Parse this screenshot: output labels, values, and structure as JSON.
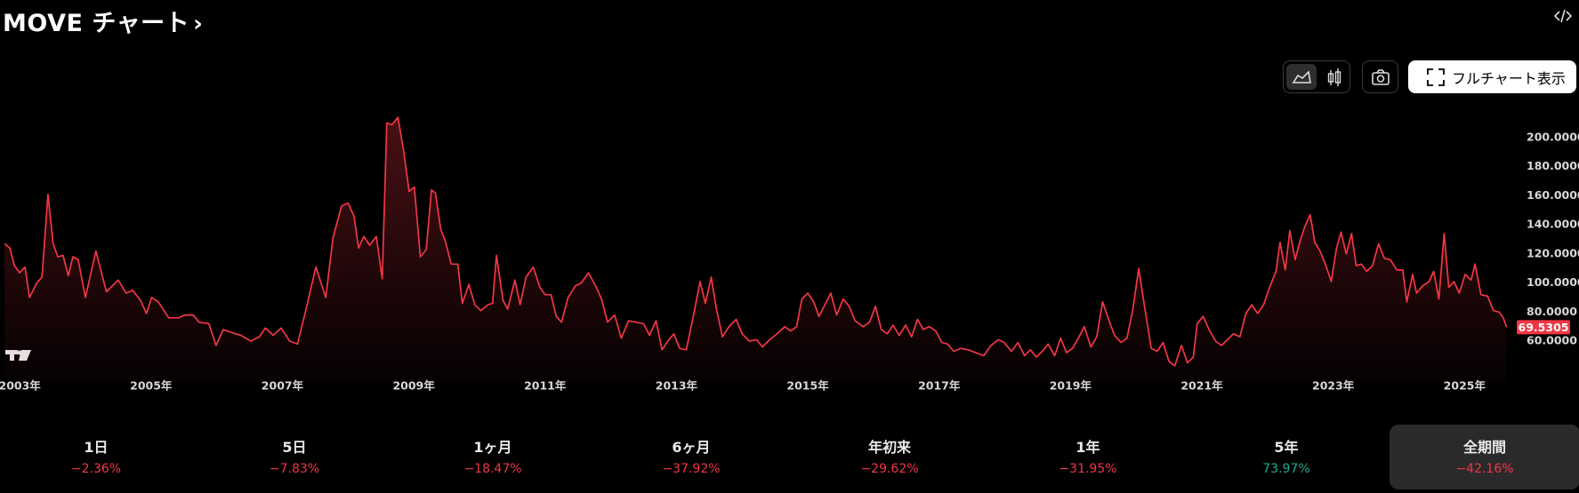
{
  "header": {
    "title": "MOVE チャート",
    "full_chart_button": "フルチャート表示"
  },
  "chart_data": {
    "type": "line",
    "color": "#f23645",
    "x": [
      2002.77,
      2002.85,
      2002.92,
      2003.0,
      2003.08,
      2003.15,
      2003.26,
      2003.34,
      2003.43,
      2003.51,
      2003.58,
      2003.66,
      2003.74,
      2003.81,
      2003.89,
      2004.0,
      2004.16,
      2004.32,
      2004.5,
      2004.62,
      2004.72,
      2004.84,
      2004.93,
      2005.01,
      2005.11,
      2005.27,
      2005.42,
      2005.51,
      2005.64,
      2005.73,
      2005.88,
      2005.99,
      2006.1,
      2006.22,
      2006.37,
      2006.52,
      2006.65,
      2006.74,
      2006.86,
      2006.98,
      2007.11,
      2007.23,
      2007.35,
      2007.51,
      2007.66,
      2007.77,
      2007.9,
      2008.0,
      2008.09,
      2008.16,
      2008.24,
      2008.33,
      2008.43,
      2008.52,
      2008.59,
      2008.67,
      2008.76,
      2008.85,
      2008.93,
      2009.01,
      2009.1,
      2009.19,
      2009.27,
      2009.33,
      2009.41,
      2009.48,
      2009.57,
      2009.67,
      2009.74,
      2009.84,
      2009.93,
      2010.02,
      2010.13,
      2010.2,
      2010.26,
      2010.36,
      2010.43,
      2010.54,
      2010.62,
      2010.71,
      2010.82,
      2010.92,
      2011.0,
      2011.09,
      2011.17,
      2011.25,
      2011.35,
      2011.46,
      2011.55,
      2011.66,
      2011.77,
      2011.86,
      2011.95,
      2012.06,
      2012.16,
      2012.27,
      2012.38,
      2012.5,
      2012.59,
      2012.69,
      2012.78,
      2012.87,
      2012.96,
      2013.05,
      2013.15,
      2013.27,
      2013.36,
      2013.44,
      2013.53,
      2013.61,
      2013.7,
      2013.8,
      2013.91,
      2014.0,
      2014.11,
      2014.22,
      2014.31,
      2014.42,
      2014.53,
      2014.65,
      2014.74,
      2014.83,
      2014.91,
      2015.0,
      2015.09,
      2015.17,
      2015.26,
      2015.35,
      2015.44,
      2015.54,
      2015.63,
      2015.72,
      2015.84,
      2015.94,
      2016.03,
      2016.12,
      2016.21,
      2016.3,
      2016.39,
      2016.49,
      2016.58,
      2016.67,
      2016.76,
      2016.85,
      2016.95,
      2017.04,
      2017.13,
      2017.22,
      2017.33,
      2017.44,
      2017.56,
      2017.68,
      2017.79,
      2017.9,
      2017.99,
      2018.1,
      2018.2,
      2018.3,
      2018.39,
      2018.48,
      2018.57,
      2018.66,
      2018.76,
      2018.85,
      2018.94,
      2019.03,
      2019.12,
      2019.21,
      2019.31,
      2019.4,
      2019.49,
      2019.58,
      2019.67,
      2019.77,
      2019.86,
      2019.95,
      2020.04,
      2020.13,
      2020.23,
      2020.32,
      2020.41,
      2020.5,
      2020.59,
      2020.69,
      2020.78,
      2020.87,
      2020.93,
      2021.02,
      2021.12,
      2021.21,
      2021.3,
      2021.39,
      2021.48,
      2021.58,
      2021.67,
      2021.76,
      2021.85,
      2021.94,
      2022.04,
      2022.13,
      2022.19,
      2022.27,
      2022.34,
      2022.42,
      2022.49,
      2022.57,
      2022.65,
      2022.72,
      2022.8,
      2022.89,
      2022.97,
      2023.05,
      2023.12,
      2023.2,
      2023.28,
      2023.35,
      2023.43,
      2023.51,
      2023.6,
      2023.69,
      2023.78,
      2023.87,
      2023.97,
      2024.06,
      2024.12,
      2024.21,
      2024.27,
      2024.36,
      2024.46,
      2024.53,
      2024.61,
      2024.69,
      2024.76,
      2024.84,
      2024.92,
      2025.01,
      2025.1,
      2025.16,
      2025.25,
      2025.35,
      2025.44,
      2025.53,
      2025.59,
      2025.64
    ],
    "values": [
      127,
      124,
      112,
      107,
      111,
      90,
      100,
      104,
      161,
      127,
      118,
      119,
      105,
      118,
      116,
      90,
      122,
      94,
      102,
      93,
      95,
      88,
      79,
      90,
      87,
      76,
      76,
      78,
      78,
      73,
      72,
      57,
      68,
      66,
      64,
      60,
      63,
      69,
      64,
      69,
      60,
      58,
      80,
      111,
      90,
      131,
      153,
      155,
      146,
      124,
      132,
      126,
      132,
      103,
      210,
      209,
      214,
      190,
      163,
      166,
      118,
      123,
      164,
      162,
      137,
      129,
      113,
      113,
      86,
      99,
      85,
      81,
      85,
      86,
      119,
      88,
      82,
      102,
      85,
      104,
      111,
      97,
      92,
      92,
      77,
      73,
      90,
      98,
      100,
      107,
      98,
      89,
      73,
      78,
      62,
      74,
      73,
      72,
      64,
      74,
      54,
      60,
      65,
      55,
      54,
      80,
      101,
      86,
      104,
      82,
      63,
      70,
      75,
      65,
      60,
      61,
      56,
      61,
      65,
      70,
      67,
      70,
      89,
      93,
      87,
      77,
      85,
      93,
      78,
      89,
      84,
      74,
      70,
      73,
      84,
      68,
      65,
      71,
      64,
      71,
      63,
      75,
      68,
      70,
      67,
      59,
      58,
      53,
      55,
      54,
      52,
      50,
      57,
      61,
      59,
      53,
      59,
      50,
      54,
      49,
      53,
      58,
      50,
      62,
      52,
      55,
      62,
      70,
      56,
      63,
      87,
      75,
      64,
      59,
      62,
      82,
      110,
      83,
      55,
      53,
      59,
      46,
      43,
      57,
      45,
      49,
      72,
      77,
      67,
      60,
      57,
      61,
      65,
      63,
      79,
      85,
      79,
      85,
      98,
      108,
      128,
      109,
      136,
      116,
      128,
      139,
      147,
      128,
      122,
      112,
      101,
      124,
      135,
      120,
      134,
      112,
      113,
      108,
      112,
      127,
      117,
      116,
      109,
      109,
      87,
      106,
      93,
      98,
      101,
      108,
      89,
      134,
      97,
      101,
      93,
      106,
      102,
      113,
      92,
      91,
      81,
      80,
      76,
      69.5305
    ],
    "xlim": [
      2002.7,
      2025.7
    ],
    "ylim": [
      38,
      221.4
    ],
    "xticks": [
      {
        "value": 2003,
        "label": "2003年"
      },
      {
        "value": 2005,
        "label": "2005年"
      },
      {
        "value": 2007,
        "label": "2007年"
      },
      {
        "value": 2009,
        "label": "2009年"
      },
      {
        "value": 2011,
        "label": "2011年"
      },
      {
        "value": 2013,
        "label": "2013年"
      },
      {
        "value": 2015,
        "label": "2015年"
      },
      {
        "value": 2017,
        "label": "2017年"
      },
      {
        "value": 2019,
        "label": "2019年"
      },
      {
        "value": 2021,
        "label": "2021年"
      },
      {
        "value": 2023,
        "label": "2023年"
      },
      {
        "value": 2025,
        "label": "2025年"
      }
    ],
    "yticks": [
      {
        "value": 60,
        "label": "60.0000"
      },
      {
        "value": 80,
        "label": "80.0000"
      },
      {
        "value": 100,
        "label": "100.0000"
      },
      {
        "value": 120,
        "label": "120.0000"
      },
      {
        "value": 140,
        "label": "140.0000"
      },
      {
        "value": 160,
        "label": "160.0000"
      },
      {
        "value": 180,
        "label": "180.0000"
      },
      {
        "value": 200,
        "label": "200.0000"
      }
    ]
  },
  "periods": [
    {
      "label": "1日",
      "change": "−2.36%",
      "color": "#f23645"
    },
    {
      "label": "5日",
      "change": "−7.83%",
      "color": "#f23645"
    },
    {
      "label": "1ヶ月",
      "change": "−18.47%",
      "color": "#f23645"
    },
    {
      "label": "6ヶ月",
      "change": "−37.92%",
      "color": "#f23645"
    },
    {
      "label": "年初来",
      "change": "−29.62%",
      "color": "#f23645"
    },
    {
      "label": "1年",
      "change": "−31.95%",
      "color": "#f23645"
    },
    {
      "label": "5年",
      "change": "73.97%",
      "color": "#22ab94"
    },
    {
      "label": "全期間",
      "change": "−42.16%",
      "color": "#f23645",
      "selected": true
    }
  ]
}
